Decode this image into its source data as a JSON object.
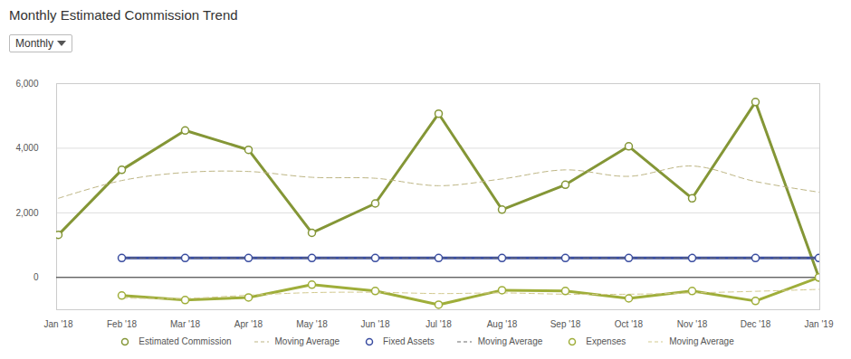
{
  "chart_data": {
    "type": "line",
    "title": "Monthly Estimated Commission Trend",
    "dropdown": "Monthly",
    "categories": [
      "Jan '18",
      "Feb '18",
      "Mar '18",
      "Apr '18",
      "May '18",
      "Jun '18",
      "Jul '18",
      "Aug '18",
      "Sep '18",
      "Oct '18",
      "Nov '18",
      "Dec '18",
      "Jan '19"
    ],
    "series": [
      {
        "name": "Estimated Commission",
        "color": "#849636",
        "marker": "circle",
        "line_style": "solid",
        "values": [
          1320,
          3330,
          4550,
          3950,
          1380,
          2290,
          5070,
          2100,
          2870,
          4060,
          2450,
          5430,
          0
        ]
      },
      {
        "name": "Moving Average",
        "color": "#bdb583",
        "marker": "none",
        "line_style": "dashed",
        "values": [
          2450,
          3000,
          3250,
          3280,
          3100,
          3070,
          2840,
          3050,
          3330,
          3130,
          3450,
          2970,
          2640
        ]
      },
      {
        "name": "Fixed Assets",
        "color": "#3a4da0",
        "marker": "circle",
        "line_style": "solid",
        "values": [
          null,
          600,
          600,
          600,
          600,
          600,
          600,
          600,
          600,
          600,
          600,
          600,
          600
        ]
      },
      {
        "name": "Moving Average",
        "color": "#6b6b6b",
        "marker": "none",
        "line_style": "dashed",
        "values": [
          null,
          600,
          600,
          600,
          600,
          600,
          600,
          600,
          600,
          600,
          600,
          600,
          600
        ]
      },
      {
        "name": "Expenses",
        "color": "#9fae3a",
        "marker": "circle",
        "line_style": "solid",
        "values": [
          null,
          -560,
          -700,
          -620,
          -225,
          -420,
          -845,
          -395,
          -420,
          -650,
          -420,
          -730,
          0
        ]
      },
      {
        "name": "Moving Average",
        "color": "#d2c98e",
        "marker": "none",
        "line_style": "dashed",
        "values": [
          null,
          -640,
          -650,
          -550,
          -470,
          -460,
          -500,
          -480,
          -520,
          -520,
          -480,
          -430,
          -370
        ]
      }
    ],
    "ylim": [
      -1000,
      6000
    ],
    "yticks": [
      0,
      {
        "value": 2000,
        "label": "2,000"
      },
      {
        "value": 4000,
        "label": "4,000"
      },
      {
        "value": 6000,
        "label": "6,000"
      }
    ],
    "grid": true,
    "legend": "bottom"
  }
}
